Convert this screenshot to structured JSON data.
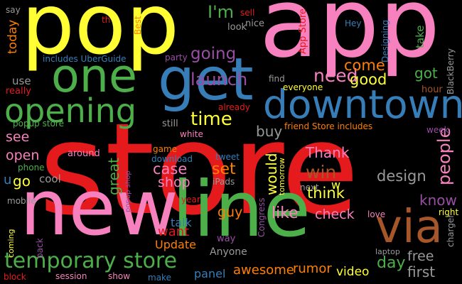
{
  "palette": {
    "background": "#000000",
    "red": "#e41a1c",
    "pink": "#f781bf",
    "yellow": "#ffff33",
    "green": "#4daf4a",
    "blue": "#377eb8",
    "orange": "#ff7f00",
    "brown": "#a65628",
    "purple": "#984ea3",
    "gray": "#999999"
  },
  "words": [
    {
      "text": "store",
      "color": "red"
    },
    {
      "text": "app",
      "color": "pink"
    },
    {
      "text": "pop",
      "color": "yellow"
    },
    {
      "text": "new",
      "color": "pink"
    },
    {
      "text": "line",
      "color": "green"
    },
    {
      "text": "get",
      "color": "blue"
    },
    {
      "text": "one",
      "color": "green"
    },
    {
      "text": "downtown",
      "color": "blue"
    },
    {
      "text": "opening",
      "color": "green"
    },
    {
      "text": "via",
      "color": "brown"
    },
    {
      "text": "temporary store",
      "color": "green"
    },
    {
      "text": "time",
      "color": "yellow"
    },
    {
      "text": "launch",
      "color": "purple"
    },
    {
      "text": "going",
      "color": "purple"
    },
    {
      "text": "I'm",
      "color": "green"
    },
    {
      "text": "need",
      "color": "pink"
    },
    {
      "text": "come",
      "color": "orange"
    },
    {
      "text": "good",
      "color": "yellow"
    },
    {
      "text": "got",
      "color": "green"
    },
    {
      "text": "day",
      "color": "green"
    },
    {
      "text": "free",
      "color": "gray"
    },
    {
      "text": "first",
      "color": "gray"
    },
    {
      "text": "people",
      "color": "pink"
    },
    {
      "text": "know",
      "color": "purple"
    },
    {
      "text": "design",
      "color": "gray"
    },
    {
      "text": "win",
      "color": "brown"
    },
    {
      "text": "think",
      "color": "yellow"
    },
    {
      "text": "Thank",
      "color": "pink"
    },
    {
      "text": "set",
      "color": "orange"
    },
    {
      "text": "case",
      "color": "pink"
    },
    {
      "text": "shop",
      "color": "pink"
    },
    {
      "text": "great",
      "color": "green"
    },
    {
      "text": "buy",
      "color": "gray"
    },
    {
      "text": "would",
      "color": "yellow"
    },
    {
      "text": "w",
      "color": "yellow"
    },
    {
      "text": "like",
      "color": "pink"
    },
    {
      "text": "check",
      "color": "pink"
    },
    {
      "text": "guy",
      "color": "orange"
    },
    {
      "text": "want",
      "color": "red"
    },
    {
      "text": "talk",
      "color": "blue"
    },
    {
      "text": "awesome",
      "color": "orange"
    },
    {
      "text": "rumor",
      "color": "orange"
    },
    {
      "text": "video",
      "color": "yellow"
    },
    {
      "text": "panel",
      "color": "blue"
    },
    {
      "text": "Update",
      "color": "orange"
    },
    {
      "text": "Anyone",
      "color": "gray"
    },
    {
      "text": "way",
      "color": "purple"
    },
    {
      "text": "see",
      "color": "pink"
    },
    {
      "text": "open",
      "color": "pink"
    },
    {
      "text": "go",
      "color": "yellow"
    },
    {
      "text": "u",
      "color": "blue"
    },
    {
      "text": "cool",
      "color": "gray"
    },
    {
      "text": "phone",
      "color": "green"
    },
    {
      "text": "mobile",
      "color": "gray"
    },
    {
      "text": "around",
      "color": "pink"
    },
    {
      "text": "use",
      "color": "gray"
    },
    {
      "text": "really",
      "color": "red"
    },
    {
      "text": "today",
      "color": "orange"
    },
    {
      "text": "say",
      "color": "gray"
    },
    {
      "text": "th",
      "color": "red"
    },
    {
      "text": "Best",
      "color": "orange"
    },
    {
      "text": "includes UberGuide",
      "color": "blue"
    },
    {
      "text": "party",
      "color": "purple"
    },
    {
      "text": "look",
      "color": "gray"
    },
    {
      "text": "nice",
      "color": "gray"
    },
    {
      "text": "sell",
      "color": "red"
    },
    {
      "text": "App Store",
      "color": "red"
    },
    {
      "text": "Hey",
      "color": "blue"
    },
    {
      "text": "Designing",
      "color": "blue"
    },
    {
      "text": "take",
      "color": "green"
    },
    {
      "text": "BlackBerry",
      "color": "gray"
    },
    {
      "text": "hour",
      "color": "brown"
    },
    {
      "text": "find",
      "color": "gray"
    },
    {
      "text": "everyone",
      "color": "yellow"
    },
    {
      "text": "already",
      "color": "red"
    },
    {
      "text": "friend Store includes",
      "color": "orange"
    },
    {
      "text": "week",
      "color": "purple"
    },
    {
      "text": "popup store",
      "color": "green"
    },
    {
      "text": "still",
      "color": "gray"
    },
    {
      "text": "white",
      "color": "pink"
    },
    {
      "text": "game",
      "color": "orange"
    },
    {
      "text": "download",
      "color": "blue"
    },
    {
      "text": "tweet",
      "color": "blue"
    },
    {
      "text": "popup shop",
      "color": "purple"
    },
    {
      "text": "year",
      "color": "red"
    },
    {
      "text": "iPads",
      "color": "gray"
    },
    {
      "text": "tomorrow",
      "color": "yellow"
    },
    {
      "text": "next",
      "color": "gray"
    },
    {
      "text": "Congress",
      "color": "purple"
    },
    {
      "text": "love",
      "color": "pink"
    },
    {
      "text": "right",
      "color": "yellow"
    },
    {
      "text": "charger",
      "color": "gray"
    },
    {
      "text": "laptop",
      "color": "gray"
    },
    {
      "text": "coming",
      "color": "yellow"
    },
    {
      "text": "back",
      "color": "purple"
    },
    {
      "text": "block",
      "color": "red"
    },
    {
      "text": "session",
      "color": "pink"
    },
    {
      "text": "show",
      "color": "pink"
    },
    {
      "text": "make",
      "color": "blue"
    }
  ]
}
